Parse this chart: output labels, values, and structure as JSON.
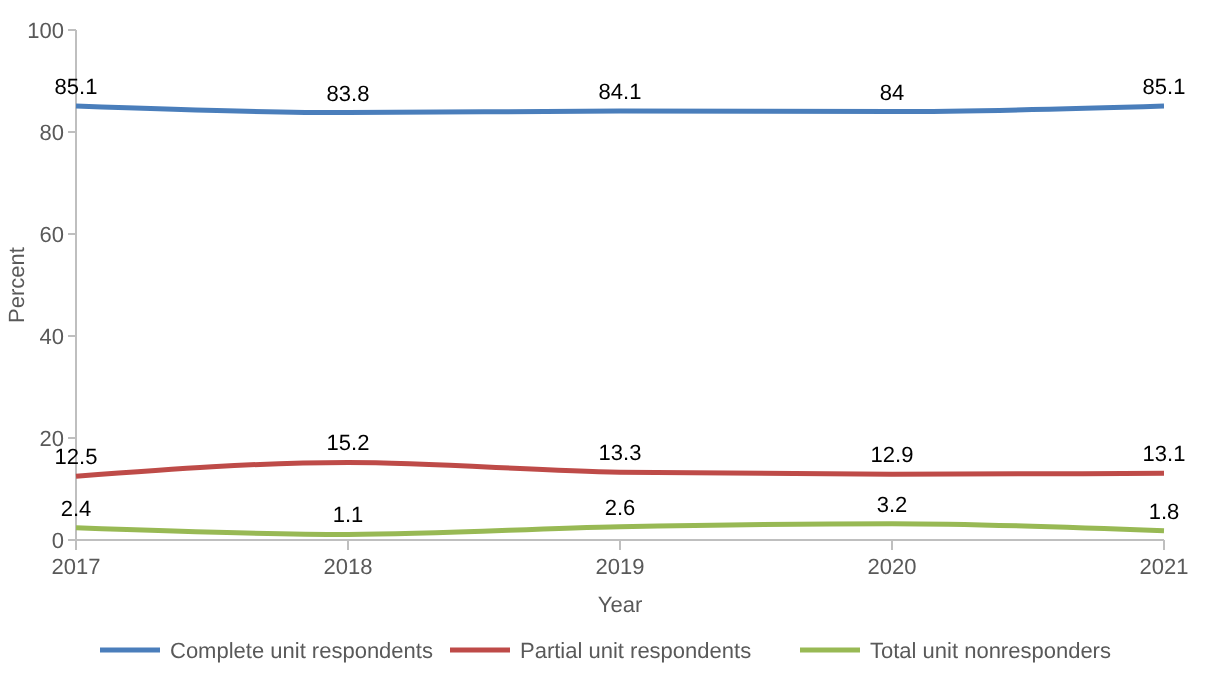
{
  "chart_data": {
    "type": "line",
    "xlabel": "Year",
    "ylabel": "Percent",
    "x": [
      2017,
      2018,
      2019,
      2020,
      2021
    ],
    "xlim": [
      2017,
      2021
    ],
    "xticks": [
      2017,
      2018,
      2019,
      2020,
      2021
    ],
    "ylim": [
      0,
      100
    ],
    "yticks": [
      0,
      20,
      40,
      60,
      80,
      100
    ],
    "grid": false,
    "legend": "bottom",
    "data_labels": true,
    "marker": "none",
    "line_style": "solid",
    "series": [
      {
        "name": "Complete unit respondents",
        "color": "#4a7ebb",
        "values": [
          85.1,
          83.8,
          84.1,
          84,
          85.1
        ]
      },
      {
        "name": "Partial unit respondents",
        "color": "#be4b48",
        "values": [
          12.5,
          15.2,
          13.3,
          12.9,
          13.1
        ]
      },
      {
        "name": "Total unit nonresponders",
        "color": "#98b954",
        "values": [
          2.4,
          1.1,
          2.6,
          3.2,
          1.8
        ]
      }
    ]
  }
}
